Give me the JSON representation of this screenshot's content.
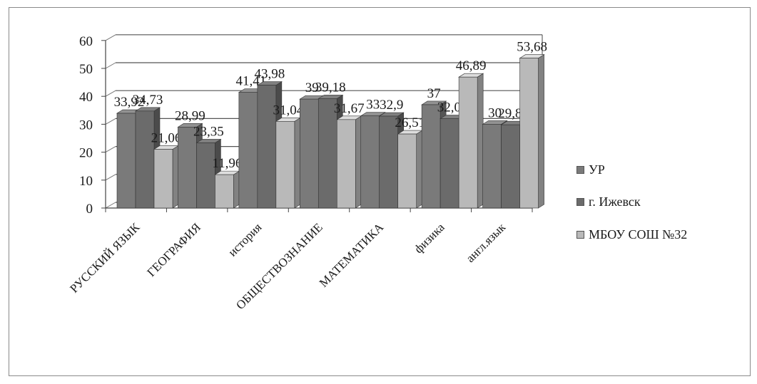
{
  "chart_data": {
    "type": "bar",
    "categories": [
      "РУССКИЙ ЯЗЫК",
      "ГЕОГРАФИЯ",
      "история",
      "ОБЩЕСТВОЗНАНИЕ",
      "МАТЕМАТИКА",
      "физика",
      "англ.язык"
    ],
    "series": [
      {
        "name": "УР",
        "values": [
          33.92,
          28.99,
          41.41,
          39.0,
          33.0,
          37.0,
          30.0
        ],
        "labels": [
          "33,92",
          "28,99",
          "41,41",
          "39",
          "33",
          "37",
          "30"
        ],
        "color": "#7a7a7a"
      },
      {
        "name": "г. Ижевск",
        "values": [
          34.73,
          23.35,
          43.98,
          39.18,
          32.9,
          32.01,
          29.81
        ],
        "labels": [
          "34,73",
          "23,35",
          "43,98",
          "39,18",
          "32,9",
          "32,01",
          "29,81"
        ],
        "color": "#6b6b6b"
      },
      {
        "name": "МБОУ СОШ №32",
        "values": [
          21.06,
          11.96,
          31.04,
          31.67,
          26.51,
          46.89,
          53.68
        ],
        "labels": [
          "21,06",
          "11,96",
          "31,04",
          "31,67",
          "26,51",
          "46,89",
          "53,68"
        ],
        "color": "#b9b9b9"
      }
    ],
    "ylim": [
      0,
      60
    ],
    "yticks": [
      "0",
      "10",
      "20",
      "30",
      "40",
      "50",
      "60"
    ],
    "grid": true,
    "legend_position": "right"
  }
}
